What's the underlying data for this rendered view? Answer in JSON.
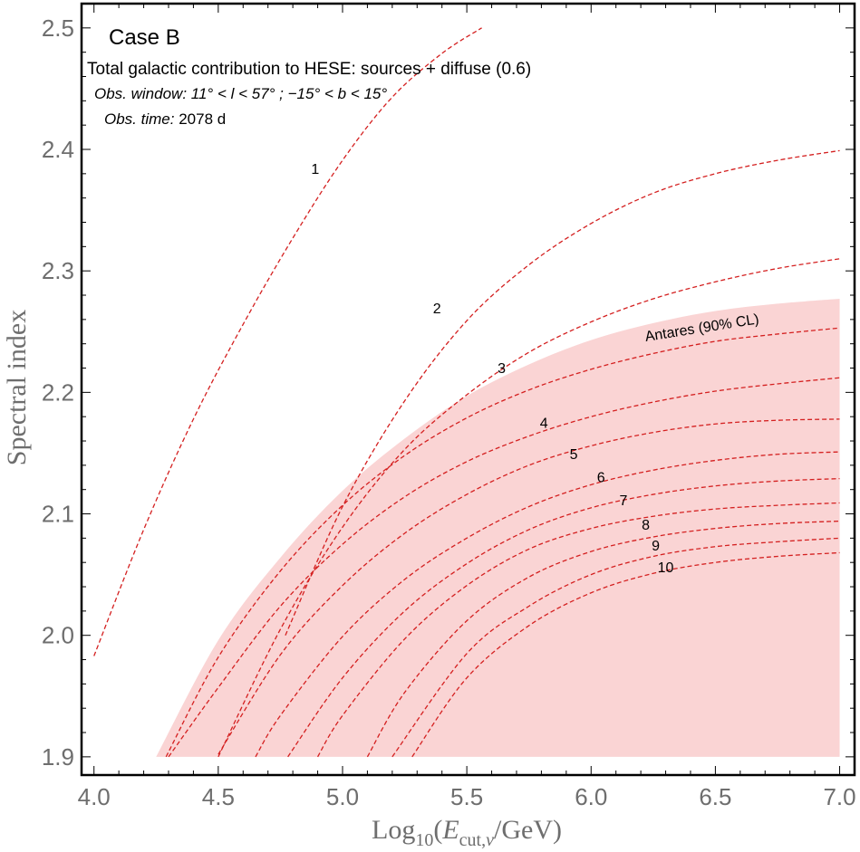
{
  "chart_data": {
    "type": "line",
    "title": "Case B",
    "subtitle": "Total galactic contribution to HESE: sources + diffuse (0.6)",
    "obs_window_label": "Obs. window:",
    "obs_window_value": "11° < l < 57° ; −15° < b < 15°",
    "obs_time_label": "Obs. time:",
    "obs_time_value": "2078 d",
    "xlabel": "Log10(Ecut,ν/GeV)",
    "ylabel": "Spectral index",
    "xlim": [
      3.95,
      7.06
    ],
    "ylim": [
      1.885,
      2.52
    ],
    "xticks": [
      4.0,
      4.5,
      5.0,
      5.5,
      6.0,
      6.5,
      7.0
    ],
    "xtick_labels": [
      "4.0",
      "4.5",
      "5.0",
      "5.5",
      "6.0",
      "6.5",
      "7.0"
    ],
    "yticks": [
      1.9,
      2.0,
      2.1,
      2.2,
      2.3,
      2.4,
      2.5
    ],
    "ytick_labels": [
      "1.9",
      "2.0",
      "2.1",
      "2.2",
      "2.3",
      "2.4",
      "2.5"
    ],
    "color": "#d42020",
    "region_color": "#fad4d4",
    "region": {
      "name": "Antares (90% CL)",
      "upper_boundary": {
        "x": [
          4.25,
          4.5,
          4.75,
          5.0,
          5.25,
          5.5,
          5.75,
          6.0,
          6.25,
          6.5,
          6.75,
          7.0
        ],
        "y": [
          1.9,
          1.996,
          2.064,
          2.119,
          2.162,
          2.197,
          2.223,
          2.243,
          2.257,
          2.267,
          2.273,
          2.277
        ]
      },
      "lower_y": 1.9,
      "x_max": 7.0
    },
    "series": [
      {
        "name": "1",
        "label_pos": [
          4.89,
          2.38
        ],
        "x": [
          4.0,
          4.2,
          4.4,
          4.6,
          4.8,
          5.0,
          5.2,
          5.4,
          5.56
        ],
        "y": [
          1.983,
          2.087,
          2.178,
          2.256,
          2.327,
          2.391,
          2.443,
          2.479,
          2.5
        ]
      },
      {
        "name": "2",
        "label_pos": [
          5.38,
          2.265
        ],
        "x": [
          4.77,
          5.0,
          5.25,
          5.5,
          5.75,
          6.0,
          6.25,
          6.5,
          6.75,
          7.0
        ],
        "y": [
          2.0,
          2.106,
          2.193,
          2.259,
          2.305,
          2.339,
          2.364,
          2.38,
          2.391,
          2.399
        ]
      },
      {
        "name": "3",
        "label_pos": [
          5.64,
          2.216
        ],
        "x": [
          4.5,
          4.75,
          5.0,
          5.25,
          5.5,
          5.75,
          6.0,
          6.25,
          6.5,
          6.75,
          7.0
        ],
        "y": [
          1.9,
          2.005,
          2.089,
          2.153,
          2.198,
          2.233,
          2.258,
          2.277,
          2.291,
          2.302,
          2.31
        ]
      },
      {
        "name": "4",
        "label_pos": [
          5.81,
          2.171
        ],
        "x": [
          4.29,
          4.5,
          4.75,
          5.0,
          5.25,
          5.5,
          5.75,
          6.0,
          6.25,
          6.5,
          6.75,
          7.0
        ],
        "y": [
          1.9,
          1.982,
          2.053,
          2.107,
          2.148,
          2.179,
          2.202,
          2.219,
          2.232,
          2.242,
          2.248,
          2.253
        ]
      },
      {
        "name": "5",
        "label_pos": [
          5.93,
          2.145
        ],
        "x": [
          4.3,
          4.5,
          4.75,
          5.0,
          5.25,
          5.5,
          5.75,
          6.0,
          6.25,
          6.5,
          6.75,
          7.0
        ],
        "y": [
          1.9,
          1.957,
          2.024,
          2.075,
          2.114,
          2.143,
          2.164,
          2.18,
          2.192,
          2.201,
          2.207,
          2.212
        ]
      },
      {
        "name": "6",
        "label_pos": [
          6.04,
          2.126
        ],
        "x": [
          4.5,
          4.75,
          5.0,
          5.25,
          5.5,
          5.75,
          6.0,
          6.25,
          6.5,
          6.75,
          7.0
        ],
        "y": [
          1.902,
          1.984,
          2.041,
          2.084,
          2.116,
          2.14,
          2.156,
          2.167,
          2.174,
          2.177,
          2.178
        ]
      },
      {
        "name": "7",
        "label_pos": [
          6.13,
          2.107
        ],
        "x": [
          4.65,
          4.75,
          5.0,
          5.25,
          5.5,
          5.75,
          6.0,
          6.25,
          6.5,
          6.75,
          7.0
        ],
        "y": [
          1.9,
          1.934,
          1.999,
          2.046,
          2.08,
          2.106,
          2.124,
          2.136,
          2.144,
          2.149,
          2.151
        ]
      },
      {
        "name": "8",
        "label_pos": [
          6.22,
          2.087
        ],
        "x": [
          4.78,
          5.0,
          5.25,
          5.5,
          5.75,
          6.0,
          6.25,
          6.5,
          6.75,
          7.0
        ],
        "y": [
          1.9,
          1.965,
          2.02,
          2.059,
          2.087,
          2.105,
          2.116,
          2.123,
          2.127,
          2.129
        ]
      },
      {
        "name": "9",
        "label_pos": [
          6.26,
          2.07
        ],
        "x": [
          4.9,
          5.0,
          5.25,
          5.5,
          5.75,
          6.0,
          6.25,
          6.5,
          6.75,
          7.0
        ],
        "y": [
          1.9,
          1.934,
          1.997,
          2.041,
          2.071,
          2.088,
          2.098,
          2.104,
          2.107,
          2.109
        ]
      },
      {
        "name": "10",
        "label_pos": [
          6.3,
          2.052
        ],
        "x": [
          5.1,
          5.25,
          5.5,
          5.75,
          6.0,
          6.25,
          6.5,
          6.75,
          7.0
        ],
        "y": [
          1.9,
          1.953,
          2.012,
          2.048,
          2.069,
          2.081,
          2.088,
          2.092,
          2.094
        ]
      },
      {
        "name": "",
        "label_pos": null,
        "x": [
          5.2,
          5.5,
          5.75,
          6.0,
          6.25,
          6.5,
          6.75,
          7.0
        ],
        "y": [
          1.9,
          1.985,
          2.024,
          2.05,
          2.065,
          2.073,
          2.077,
          2.08
        ]
      },
      {
        "name": "",
        "label_pos": null,
        "x": [
          5.28,
          5.5,
          5.75,
          6.0,
          6.25,
          6.5,
          6.75,
          7.0
        ],
        "y": [
          1.9,
          1.965,
          2.008,
          2.035,
          2.051,
          2.06,
          2.065,
          2.068
        ]
      }
    ]
  }
}
